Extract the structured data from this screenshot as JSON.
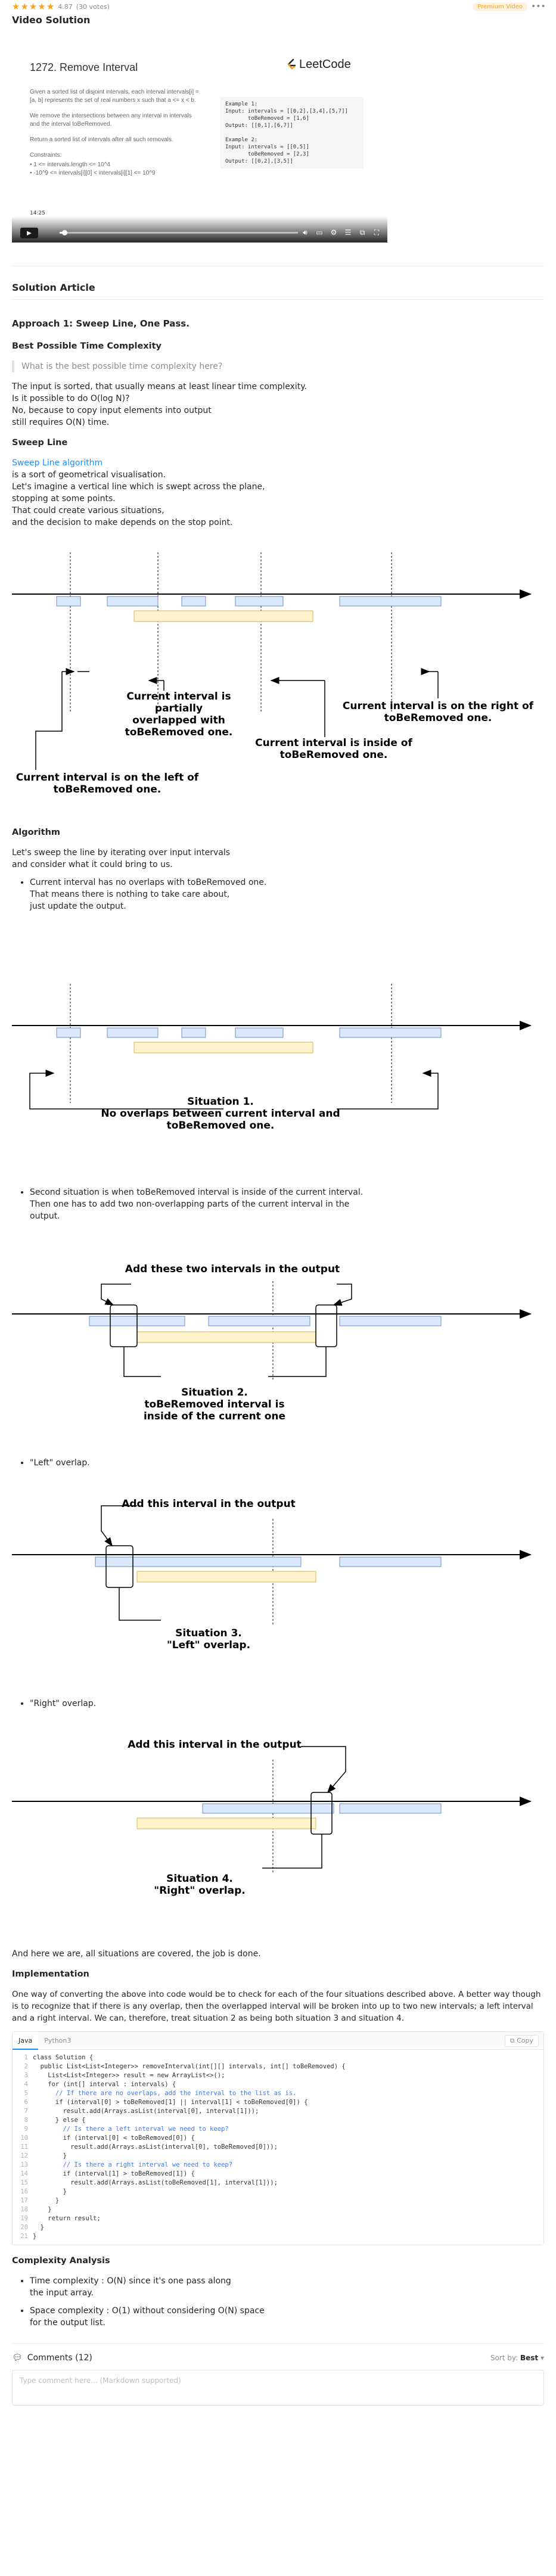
{
  "rating": {
    "score_text": "4.87",
    "votes_text": "(30 votes)",
    "stars": 5
  },
  "premium_badge": "Premium Video",
  "video": {
    "section_title": "Video Solution",
    "problem_title": "1272. Remove Interval",
    "logo_text": "LeetCode",
    "paragraphs": [
      "Given a sorted list of disjoint intervals, each interval intervals[i] = [a, b] represents the set of real numbers x such that a <= x < b.",
      "We remove the intersections between any interval in intervals and the interval toBeRemoved.",
      "Return a sorted list of intervals after all such removals."
    ],
    "constraints_title": "Constraints:",
    "constraints": [
      "1 <= intervals.length <= 10^4",
      "-10^9 <= intervals[i][0] < intervals[i][1] <= 10^9"
    ],
    "example_code": "Example 1:\nInput: intervals = [[0,2],[3,4],[5,7]]\n       toBeRemoved = [1,6]\nOutput: [[0,1],[6,7]]\n\nExample 2:\nInput: intervals = [[0,5]]\n       toBeRemoved = [2,3]\nOutput: [[0,2],[3,5]]",
    "time_text": "14:25",
    "progress": 0.02
  },
  "article": {
    "section_title": "Solution Article",
    "approach_title": "Approach 1: Sweep Line, One Pass.",
    "best_complexity_title": "Best Possible Time Complexity",
    "quote": "What is the best possible time complexity here?",
    "p1": [
      "The input is sorted, that usually means at least linear time complexity.",
      "Is it possible to do O(log N)?",
      "No, because to copy input elements into output",
      "still requires O(N) time."
    ],
    "sweep_title": "Sweep Line",
    "sweep_link": "Sweep Line algorithm",
    "p2": [
      "is a sort of geometrical visualisation.",
      "Let's imagine a vertical line which is swept across the plane,",
      "stopping at some points.",
      "That could create various situations,",
      "and the decision to make depends on the stop point."
    ],
    "algorithm_title": "Algorithm",
    "p3": [
      "Let's sweep the line by iterating over input intervals",
      "and consider what it could bring to us."
    ],
    "bullet1": [
      "Current interval has no overlaps with toBeRemoved one.",
      "That means there is nothing to take care about,",
      "just update the output."
    ],
    "bullet2": "Second situation is when toBeRemoved interval is inside of the current interval. Then one has to add two non-overlapping parts of the current interval in the output.",
    "bullet3": "\"Left\" overlap.",
    "bullet4": "\"Right\" overlap.",
    "done_text": "And here we are, all situations are covered, the job is done.",
    "impl_title": "Implementation",
    "impl_text": "One way of converting the above into code would be to check for each of the four situations described above. A better way though is to recognize that if there is any overlap, then the overlapped interval will be broken into up to two new intervals; a left interval and a right interval. We can, therefore, treat situation 2 as being both situation 3 and situation 4.",
    "complexity_title": "Complexity Analysis",
    "complexity": [
      "Time complexity : O(N) since it's one pass along",
      "the input array.",
      "Space complexity : O(1) without considering O(N) space",
      "for the output list."
    ]
  },
  "figures": {
    "fig1": {
      "partial": [
        "Current interval is partially",
        "overlapped with",
        "toBeRemoved one."
      ],
      "right": [
        "Current interval is on the right of",
        "toBeRemoved one."
      ],
      "inside": [
        "Current interval is inside of",
        "toBeRemoved one."
      ],
      "left": [
        "Current interval is on the left of",
        "toBeRemoved one."
      ]
    },
    "fig2": [
      "Situation 1.",
      "No overlaps between current interval and",
      "toBeRemoved one."
    ],
    "fig3": {
      "top": "Add these two intervals in the output",
      "bottom": [
        "Situation 2.",
        "toBeRemoved interval is",
        "inside of the current one"
      ]
    },
    "fig4": {
      "top": "Add this interval in the output",
      "bottom": [
        "Situation 3.",
        "\"Left\" overlap."
      ]
    },
    "fig5": {
      "top": "Add this interval in the output",
      "bottom": [
        "Situation 4.",
        "\"Right\" overlap."
      ]
    }
  },
  "code": {
    "tabs": [
      "Java",
      "Python3"
    ],
    "copy_label": "Copy",
    "lines": [
      "class Solution {",
      "  public List<List<Integer>> removeInterval(int[][] intervals, int[] toBeRemoved) {",
      "    List<List<Integer>> result = new ArrayList<>();",
      "    for (int[] interval : intervals) {",
      "      // If there are no overlaps, add the interval to the list as is.",
      "      if (interval[0] > toBeRemoved[1] || interval[1] < toBeRemoved[0]) {",
      "        result.add(Arrays.asList(interval[0], interval[1]));",
      "      } else {",
      "        // Is there a left interval we need to keep?",
      "        if (interval[0] < toBeRemoved[0]) {",
      "          result.add(Arrays.asList(interval[0], toBeRemoved[0]));",
      "        }",
      "        // Is there a right interval we need to keep?",
      "        if (interval[1] > toBeRemoved[1]) {",
      "          result.add(Arrays.asList(toBeRemoved[1], interval[1]));",
      "        }",
      "      }",
      "    }",
      "    return result;",
      "  }",
      "}"
    ]
  },
  "comments": {
    "title": "Comments (12)",
    "sort_label": "Sort by:",
    "sort_value": "Best",
    "placeholder": "Type comment here... (Markdown supported)"
  },
  "colors": {
    "interval_fill": "#dae8fc",
    "interval_stroke": "#6c8ebf",
    "removed_fill": "#fff2cc",
    "removed_stroke": "#d6b656",
    "star": "#ffa116",
    "link": "#1890ff"
  }
}
